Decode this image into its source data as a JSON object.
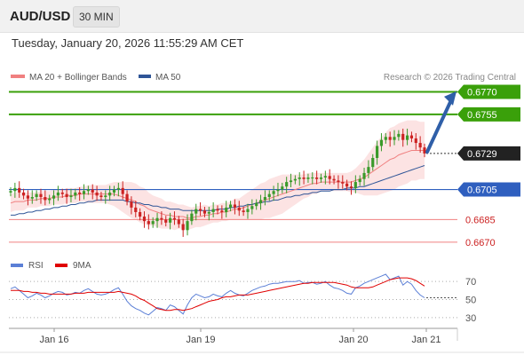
{
  "header": {
    "symbol": "AUD/USD",
    "timeframe": "30 MIN"
  },
  "timestamp": "Tuesday, January 20, 2026 11:55:29 AM CET",
  "legend": {
    "ma20_label": "MA 20 + Bollinger Bands",
    "ma50_label": "MA 50",
    "ma20_color": "#f08080",
    "ma50_color": "#2f5597",
    "credit": "Research © 2026 Trading Central"
  },
  "rsi_legend": {
    "rsi_label": "RSI",
    "ma9_label": "9MA",
    "rsi_color": "#5b7fd6",
    "ma9_color": "#e00000"
  },
  "colors": {
    "resistance": "#3aa00a",
    "pivot": "#2f5fbf",
    "support": "#f08080",
    "arrow": "#2f5fa8",
    "bull": "#3a9a2a",
    "bear": "#cc2222"
  },
  "chart_data": [
    {
      "type": "candlestick",
      "ylim": [
        0.6664,
        0.6775
      ],
      "x_ticks": [
        "Jan 16",
        "Jan 19",
        "Jan 20",
        "Jan 21"
      ],
      "levels": [
        {
          "value": 0.677,
          "label": "0.6770",
          "kind": "resistance"
        },
        {
          "value": 0.6755,
          "label": "0.6755",
          "kind": "resistance"
        },
        {
          "value": 0.6729,
          "label": "0.6729",
          "kind": "last"
        },
        {
          "value": 0.6705,
          "label": "0.6705",
          "kind": "pivot"
        },
        {
          "value": 0.6685,
          "label": "0.6685",
          "kind": "support"
        },
        {
          "value": 0.667,
          "label": "0.6670",
          "kind": "support"
        }
      ],
      "close": [
        0.6704,
        0.6706,
        0.6703,
        0.6701,
        0.6699,
        0.67,
        0.6702,
        0.67,
        0.6698,
        0.6699,
        0.6701,
        0.6703,
        0.6702,
        0.67,
        0.6701,
        0.6703,
        0.6702,
        0.6704,
        0.6705,
        0.6703,
        0.6701,
        0.67,
        0.6701,
        0.6703,
        0.6705,
        0.6706,
        0.6702,
        0.6697,
        0.6693,
        0.669,
        0.6687,
        0.6684,
        0.6682,
        0.6684,
        0.6686,
        0.6685,
        0.6683,
        0.6686,
        0.6685,
        0.6682,
        0.6678,
        0.6684,
        0.6689,
        0.6692,
        0.6691,
        0.6689,
        0.669,
        0.6692,
        0.6691,
        0.669,
        0.6693,
        0.6695,
        0.6693,
        0.6691,
        0.669,
        0.6692,
        0.6694,
        0.6696,
        0.6698,
        0.67,
        0.6702,
        0.6704,
        0.6705,
        0.6707,
        0.671,
        0.6711,
        0.6712,
        0.6713,
        0.6712,
        0.6713,
        0.6713,
        0.6712,
        0.6713,
        0.6714,
        0.6712,
        0.6711,
        0.671,
        0.6709,
        0.6707,
        0.6706,
        0.671,
        0.6712,
        0.6716,
        0.672,
        0.6726,
        0.6734,
        0.6738,
        0.674,
        0.6738,
        0.674,
        0.6742,
        0.6738,
        0.6741,
        0.6739,
        0.6736,
        0.6733,
        0.6729
      ],
      "ma20": [
        0.6696,
        0.6697,
        0.6697,
        0.6697,
        0.6698,
        0.6698,
        0.6698,
        0.6699,
        0.6699,
        0.6699,
        0.67,
        0.67,
        0.67,
        0.6701,
        0.6701,
        0.6701,
        0.6702,
        0.6702,
        0.6702,
        0.6702,
        0.6702,
        0.6702,
        0.6702,
        0.6702,
        0.6702,
        0.6701,
        0.67,
        0.6699,
        0.6698,
        0.6697,
        0.6695,
        0.6694,
        0.6692,
        0.6691,
        0.669,
        0.6689,
        0.6688,
        0.6688,
        0.6687,
        0.6687,
        0.6687,
        0.6686,
        0.6686,
        0.6687,
        0.6687,
        0.6688,
        0.6688,
        0.6689,
        0.6689,
        0.669,
        0.669,
        0.6691,
        0.6692,
        0.6692,
        0.6693,
        0.6694,
        0.6695,
        0.6696,
        0.6697,
        0.6698,
        0.6699,
        0.67,
        0.6701,
        0.6702,
        0.6703,
        0.6704,
        0.6705,
        0.6706,
        0.6707,
        0.6708,
        0.6709,
        0.6709,
        0.671,
        0.671,
        0.671,
        0.671,
        0.671,
        0.671,
        0.671,
        0.671,
        0.6711,
        0.6712,
        0.6713,
        0.6715,
        0.6717,
        0.6719,
        0.6721,
        0.6723,
        0.6725,
        0.6726,
        0.6728,
        0.6729,
        0.673,
        0.6731,
        0.6731,
        0.6731,
        0.6731
      ],
      "ma50": [
        0.6688,
        0.6688,
        0.6689,
        0.6689,
        0.669,
        0.669,
        0.6691,
        0.6691,
        0.6692,
        0.6692,
        0.6693,
        0.6693,
        0.6694,
        0.6694,
        0.6695,
        0.6695,
        0.6696,
        0.6696,
        0.6697,
        0.6697,
        0.6698,
        0.6698,
        0.6698,
        0.6698,
        0.6698,
        0.6698,
        0.6698,
        0.6697,
        0.6697,
        0.6696,
        0.6696,
        0.6695,
        0.6695,
        0.6694,
        0.6694,
        0.6693,
        0.6693,
        0.6692,
        0.6692,
        0.6692,
        0.6691,
        0.6691,
        0.6691,
        0.6691,
        0.6691,
        0.6691,
        0.6691,
        0.6691,
        0.6692,
        0.6692,
        0.6692,
        0.6693,
        0.6693,
        0.6694,
        0.6694,
        0.6695,
        0.6695,
        0.6696,
        0.6696,
        0.6697,
        0.6697,
        0.6698,
        0.6698,
        0.6699,
        0.67,
        0.67,
        0.6701,
        0.6701,
        0.6702,
        0.6702,
        0.6703,
        0.6703,
        0.6704,
        0.6704,
        0.6704,
        0.6705,
        0.6705,
        0.6705,
        0.6706,
        0.6706,
        0.6706,
        0.6707,
        0.6707,
        0.6708,
        0.6709,
        0.671,
        0.6711,
        0.6712,
        0.6713,
        0.6714,
        0.6715,
        0.6716,
        0.6717,
        0.6718,
        0.6719,
        0.672,
        0.6721
      ],
      "bb_width": [
        0.0006,
        0.0006,
        0.0006,
        0.0006,
        0.0005,
        0.0005,
        0.0005,
        0.0005,
        0.0005,
        0.0005,
        0.0005,
        0.0005,
        0.0005,
        0.0005,
        0.0005,
        0.0005,
        0.0005,
        0.0005,
        0.0006,
        0.0006,
        0.0006,
        0.0006,
        0.0006,
        0.0007,
        0.0008,
        0.0009,
        0.001,
        0.0011,
        0.0012,
        0.0012,
        0.0012,
        0.0012,
        0.0011,
        0.001,
        0.001,
        0.001,
        0.0009,
        0.0009,
        0.0009,
        0.0008,
        0.0008,
        0.0008,
        0.0007,
        0.0007,
        0.0007,
        0.0007,
        0.0006,
        0.0006,
        0.0006,
        0.0006,
        0.0006,
        0.0006,
        0.0007,
        0.0007,
        0.0008,
        0.0009,
        0.001,
        0.0011,
        0.0012,
        0.0012,
        0.0013,
        0.0013,
        0.0013,
        0.0013,
        0.0012,
        0.0011,
        0.001,
        0.0009,
        0.0008,
        0.0008,
        0.0007,
        0.0007,
        0.0006,
        0.0006,
        0.0006,
        0.0006,
        0.0006,
        0.0006,
        0.0006,
        0.0007,
        0.0008,
        0.001,
        0.0012,
        0.0014,
        0.0016,
        0.0018,
        0.0019,
        0.002,
        0.0021,
        0.0021,
        0.0021,
        0.0021,
        0.0021,
        0.002,
        0.002,
        0.0019,
        0.0019
      ]
    },
    {
      "type": "line",
      "name": "RSI",
      "ylim": [
        20,
        80
      ],
      "y_ticks": [
        "70",
        "50",
        "30"
      ],
      "rsi": [
        62,
        64,
        60,
        56,
        52,
        54,
        57,
        55,
        52,
        54,
        57,
        59,
        58,
        55,
        56,
        58,
        57,
        60,
        62,
        59,
        56,
        55,
        56,
        58,
        61,
        63,
        56,
        48,
        43,
        40,
        38,
        35,
        33,
        37,
        41,
        40,
        38,
        44,
        42,
        38,
        34,
        44,
        52,
        56,
        54,
        52,
        53,
        56,
        54,
        53,
        57,
        60,
        57,
        55,
        54,
        57,
        60,
        62,
        64,
        65,
        67,
        68,
        68,
        69,
        70,
        70,
        70,
        71,
        68,
        69,
        69,
        67,
        68,
        70,
        66,
        63,
        62,
        60,
        57,
        56,
        63,
        65,
        68,
        70,
        72,
        74,
        76,
        78,
        72,
        74,
        76,
        66,
        70,
        67,
        60,
        55,
        52
      ],
      "ma9": [
        60,
        60,
        60,
        59,
        59,
        58,
        58,
        57,
        57,
        56,
        56,
        56,
        56,
        56,
        56,
        57,
        57,
        57,
        58,
        58,
        58,
        58,
        58,
        58,
        58,
        59,
        58,
        57,
        56,
        54,
        51,
        49,
        46,
        43,
        40,
        39,
        38,
        38,
        39,
        39,
        38,
        39,
        40,
        42,
        44,
        46,
        48,
        49,
        50,
        52,
        53,
        53,
        54,
        55,
        55,
        55,
        56,
        57,
        58,
        59,
        60,
        61,
        62,
        63,
        64,
        65,
        66,
        67,
        68,
        68,
        69,
        69,
        69,
        69,
        69,
        69,
        68,
        67,
        66,
        64,
        63,
        63,
        63,
        63,
        64,
        66,
        68,
        70,
        72,
        73,
        74,
        74,
        74,
        73,
        71,
        68,
        65
      ]
    }
  ]
}
